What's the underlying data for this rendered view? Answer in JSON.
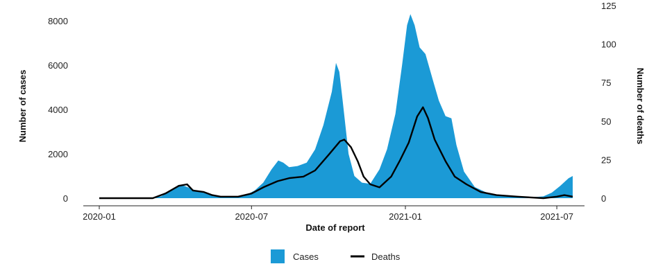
{
  "chart_data": {
    "type": "area",
    "title": "",
    "xlabel": "Date of report",
    "ylabel_left": "Number of cases",
    "ylabel_right": "Number of deaths",
    "x_ticks": [
      "2020-01",
      "2020-07",
      "2021-01",
      "2021-07"
    ],
    "x_range": [
      "2020-01-01",
      "2021-07-20"
    ],
    "y_left": {
      "ticks": [
        "0",
        "2000",
        "4000",
        "6000",
        "8000"
      ],
      "ylim": [
        0,
        8400
      ]
    },
    "y_right": {
      "ticks": [
        "0",
        "25",
        "50",
        "75",
        "100",
        "125"
      ],
      "ylim": [
        0,
        125
      ]
    },
    "grid": false,
    "legend_position": "bottom",
    "colors": {
      "cases": "#1b9ad6",
      "deaths": "#000000",
      "axis": "#222222"
    },
    "series": [
      {
        "name": "Cases",
        "kind": "area",
        "axis": "left",
        "points": [
          [
            "2020-01-01",
            0
          ],
          [
            "2020-03-01",
            0
          ],
          [
            "2020-03-15",
            80
          ],
          [
            "2020-03-25",
            300
          ],
          [
            "2020-04-05",
            600
          ],
          [
            "2020-04-12",
            550
          ],
          [
            "2020-04-25",
            350
          ],
          [
            "2020-05-10",
            180
          ],
          [
            "2020-05-25",
            80
          ],
          [
            "2020-06-10",
            60
          ],
          [
            "2020-06-25",
            150
          ],
          [
            "2020-07-05",
            350
          ],
          [
            "2020-07-15",
            700
          ],
          [
            "2020-07-25",
            1300
          ],
          [
            "2020-08-02",
            1700
          ],
          [
            "2020-08-08",
            1600
          ],
          [
            "2020-08-15",
            1400
          ],
          [
            "2020-08-25",
            1450
          ],
          [
            "2020-09-05",
            1600
          ],
          [
            "2020-09-15",
            2200
          ],
          [
            "2020-09-25",
            3300
          ],
          [
            "2020-10-05",
            4800
          ],
          [
            "2020-10-10",
            6100
          ],
          [
            "2020-10-14",
            5700
          ],
          [
            "2020-10-18",
            4400
          ],
          [
            "2020-10-25",
            2000
          ],
          [
            "2020-11-01",
            1000
          ],
          [
            "2020-11-10",
            700
          ],
          [
            "2020-11-20",
            650
          ],
          [
            "2020-12-01",
            1300
          ],
          [
            "2020-12-10",
            2200
          ],
          [
            "2020-12-20",
            3800
          ],
          [
            "2020-12-28",
            6000
          ],
          [
            "2021-01-03",
            7800
          ],
          [
            "2021-01-07",
            8300
          ],
          [
            "2021-01-12",
            7800
          ],
          [
            "2021-01-18",
            6800
          ],
          [
            "2021-01-25",
            6500
          ],
          [
            "2021-02-03",
            5300
          ],
          [
            "2021-02-10",
            4400
          ],
          [
            "2021-02-18",
            3700
          ],
          [
            "2021-02-25",
            3600
          ],
          [
            "2021-03-03",
            2400
          ],
          [
            "2021-03-12",
            1200
          ],
          [
            "2021-03-25",
            500
          ],
          [
            "2021-04-10",
            220
          ],
          [
            "2021-05-01",
            80
          ],
          [
            "2021-06-01",
            40
          ],
          [
            "2021-06-15",
            80
          ],
          [
            "2021-06-25",
            250
          ],
          [
            "2021-07-05",
            550
          ],
          [
            "2021-07-15",
            900
          ],
          [
            "2021-07-20",
            1000
          ]
        ]
      },
      {
        "name": "Deaths",
        "kind": "line",
        "axis": "right",
        "points": [
          [
            "2020-01-01",
            0
          ],
          [
            "2020-03-05",
            0
          ],
          [
            "2020-03-20",
            3
          ],
          [
            "2020-04-05",
            8
          ],
          [
            "2020-04-15",
            9
          ],
          [
            "2020-04-22",
            5
          ],
          [
            "2020-05-05",
            4
          ],
          [
            "2020-05-15",
            2
          ],
          [
            "2020-05-25",
            1
          ],
          [
            "2020-06-15",
            1
          ],
          [
            "2020-07-01",
            3
          ],
          [
            "2020-07-15",
            7
          ],
          [
            "2020-08-01",
            11
          ],
          [
            "2020-08-15",
            13
          ],
          [
            "2020-09-01",
            14
          ],
          [
            "2020-09-15",
            18
          ],
          [
            "2020-10-01",
            28
          ],
          [
            "2020-10-15",
            37
          ],
          [
            "2020-10-20",
            38
          ],
          [
            "2020-10-28",
            33
          ],
          [
            "2020-11-05",
            24
          ],
          [
            "2020-11-12",
            14
          ],
          [
            "2020-11-20",
            9
          ],
          [
            "2020-12-01",
            7
          ],
          [
            "2020-12-15",
            14
          ],
          [
            "2020-12-25",
            24
          ],
          [
            "2021-01-05",
            36
          ],
          [
            "2021-01-15",
            53
          ],
          [
            "2021-01-22",
            59
          ],
          [
            "2021-01-28",
            52
          ],
          [
            "2021-02-05",
            38
          ],
          [
            "2021-02-18",
            24
          ],
          [
            "2021-03-01",
            14
          ],
          [
            "2021-03-15",
            9
          ],
          [
            "2021-04-01",
            4
          ],
          [
            "2021-04-20",
            2
          ],
          [
            "2021-05-15",
            1
          ],
          [
            "2021-06-15",
            0
          ],
          [
            "2021-07-01",
            1
          ],
          [
            "2021-07-10",
            2
          ],
          [
            "2021-07-20",
            1
          ]
        ]
      }
    ]
  },
  "legend": {
    "items": [
      {
        "label": "Cases",
        "swatch": "cases-icon"
      },
      {
        "label": "Deaths",
        "swatch": "deaths-icon"
      }
    ]
  }
}
